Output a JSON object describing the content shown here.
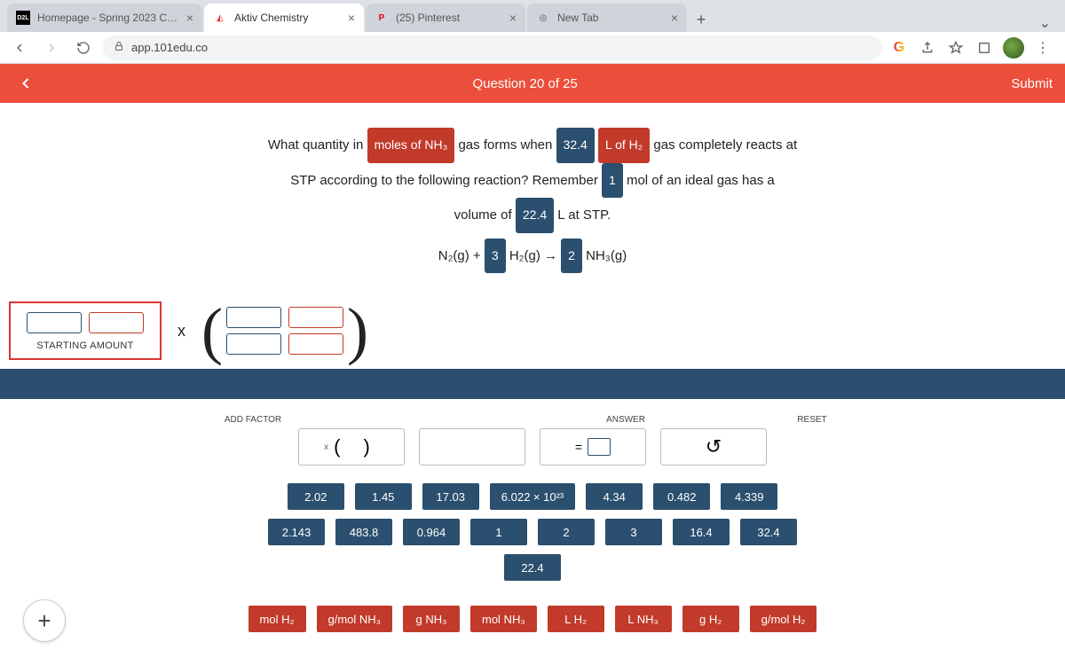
{
  "browser": {
    "tabs": [
      {
        "favicon": "D2L",
        "title": "Homepage - Spring 2023 CHEM",
        "active": false
      },
      {
        "favicon": "▲",
        "title": "Aktiv Chemistry",
        "active": true
      },
      {
        "favicon": "P",
        "title": "(25) Pinterest",
        "active": false
      },
      {
        "favicon": "◎",
        "title": "New Tab",
        "active": false
      }
    ],
    "url": "app.101edu.co"
  },
  "header": {
    "question_label": "Question 20 of 25",
    "submit_label": "Submit"
  },
  "question": {
    "l1_a": "What quantity in",
    "l1_chip1": "moles of NH₃",
    "l1_b": "gas forms when",
    "l1_chip2": "32.4",
    "l1_chip3": "L of H₂",
    "l1_c": "gas completely reacts at",
    "l2_a": "STP according to the following reaction? Remember",
    "l2_chip1": "1",
    "l2_b": "mol of an ideal gas has a",
    "l3_a": "volume of",
    "l3_chip1": "22.4",
    "l3_b": "L at STP.",
    "eq_a": "N₂(g) +",
    "eq_chip1": "3",
    "eq_b": "H₂(g) →",
    "eq_chip2": "2",
    "eq_c": "NH₃(g)"
  },
  "work": {
    "starting_label": "STARTING AMOUNT",
    "times": "x"
  },
  "controls": {
    "labels": {
      "add_factor": "ADD FACTOR",
      "answer": "ANSWER",
      "reset": "RESET"
    },
    "add_factor_x": "x",
    "add_factor_parens": "(    )",
    "answer_eq": "=",
    "reset_glyph": "↺"
  },
  "tiles": {
    "row1": [
      "2.02",
      "1.45",
      "17.03",
      "6.022 × 10²³",
      "4.34",
      "0.482",
      "4.339"
    ],
    "row2": [
      "2.143",
      "483.8",
      "0.964",
      "1",
      "2",
      "3",
      "16.4",
      "32.4"
    ],
    "row3": [
      "22.4"
    ],
    "units": [
      "mol H₂",
      "g/mol NH₃",
      "g NH₃",
      "mol NH₃",
      "L H₂",
      "L NH₃",
      "g H₂",
      "g/mol H₂"
    ]
  },
  "colors": {
    "header_bg": "#eb4e3a",
    "blue": "#2b4f6e",
    "red": "#c23a2a"
  }
}
